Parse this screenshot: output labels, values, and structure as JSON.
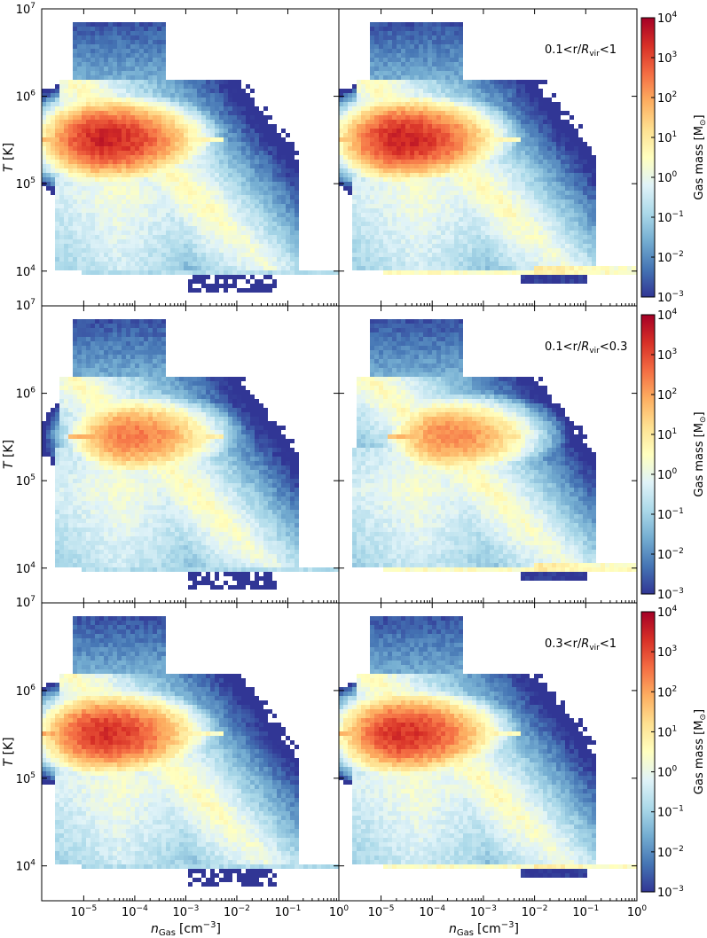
{
  "figure": {
    "xlabel_main": "n",
    "xlabel_sub": "Gas",
    "xlabel_unit": "[cm",
    "xlabel_exp": "−3",
    "xlabel_close": "]",
    "ylabel_main": "T",
    "ylabel_unit": "[K]",
    "colorbar_label_main": "Gas mass [M",
    "colorbar_label_sun": "⊙",
    "colorbar_label_close": "]",
    "tick_base": "10"
  },
  "chart_data": {
    "type": "heatmap",
    "description_of_layout": "3 rows x 2 columns of temperature-density phase diagrams, each row shares a colorbar",
    "x_scale": "log",
    "y_scale": "log",
    "xlim": [
      1.5e-06,
      1.0
    ],
    "ylim": [
      4000.0,
      10000000.0
    ],
    "x_ticks_exp_left": [
      "−5",
      "−4",
      "−3",
      "−2",
      "−1",
      "0"
    ],
    "x_ticks_exp_right": [
      "−5",
      "−4",
      "−3",
      "−2",
      "−1",
      "0"
    ],
    "y_ticks_exp": [
      "4",
      "5",
      "6",
      "7"
    ],
    "colorbar": {
      "scale": "log",
      "range": [
        0.001,
        10000
      ],
      "tick_exps": [
        "4",
        "3",
        "2",
        "1",
        "0",
        "−1",
        "−2",
        "−3"
      ],
      "colors": [
        "#313695",
        "#4575b4",
        "#74add1",
        "#abd9e9",
        "#e0f3f8",
        "#ffffbf",
        "#fee090",
        "#fdae61",
        "#f46d43",
        "#d73027",
        "#a50026"
      ]
    },
    "rows": [
      {
        "annotation_prefix": "0.1<r/",
        "annotation_R": "R",
        "annotation_sub": "vir",
        "annotation_suffix": "<1",
        "left": {
          "peak_n": 2.5e-05,
          "peak_T": 320000.0,
          "peak_mass": 3000,
          "cold_clump": true,
          "cold_n_range": [
            0.0012,
            0.06
          ],
          "floor_T": 10000.0
        },
        "right": {
          "peak_n": 2.5e-05,
          "peak_T": 320000.0,
          "peak_mass": 3000,
          "cold_clump": false,
          "floor_n_range": [
            0.01,
            1.0
          ],
          "floor_T": 10000.0
        }
      },
      {
        "annotation_prefix": "0.1<r/",
        "annotation_R": "R",
        "annotation_sub": "vir",
        "annotation_suffix": "<0.3",
        "left": {
          "peak_n": 8e-05,
          "peak_T": 320000.0,
          "peak_mass": 300,
          "cold_clump": true,
          "cold_n_range": [
            0.0012,
            0.06
          ],
          "floor_T": 10000.0
        },
        "right": {
          "peak_n": 0.0002,
          "peak_T": 320000.0,
          "peak_mass": 200,
          "cold_clump": false,
          "floor_n_range": [
            0.01,
            1.0
          ],
          "floor_T": 10000.0
        }
      },
      {
        "annotation_prefix": "0.3<r/",
        "annotation_R": "R",
        "annotation_sub": "vir",
        "annotation_suffix": "<1",
        "left": {
          "peak_n": 2.5e-05,
          "peak_T": 320000.0,
          "peak_mass": 2000,
          "cold_clump": true,
          "cold_n_range": [
            0.0012,
            0.06
          ],
          "floor_T": 10000.0
        },
        "right": {
          "peak_n": 2.5e-05,
          "peak_T": 320000.0,
          "peak_mass": 2000,
          "cold_clump": false,
          "floor_n_range": [
            0.01,
            1.0
          ],
          "floor_T": 10000.0
        }
      }
    ]
  }
}
